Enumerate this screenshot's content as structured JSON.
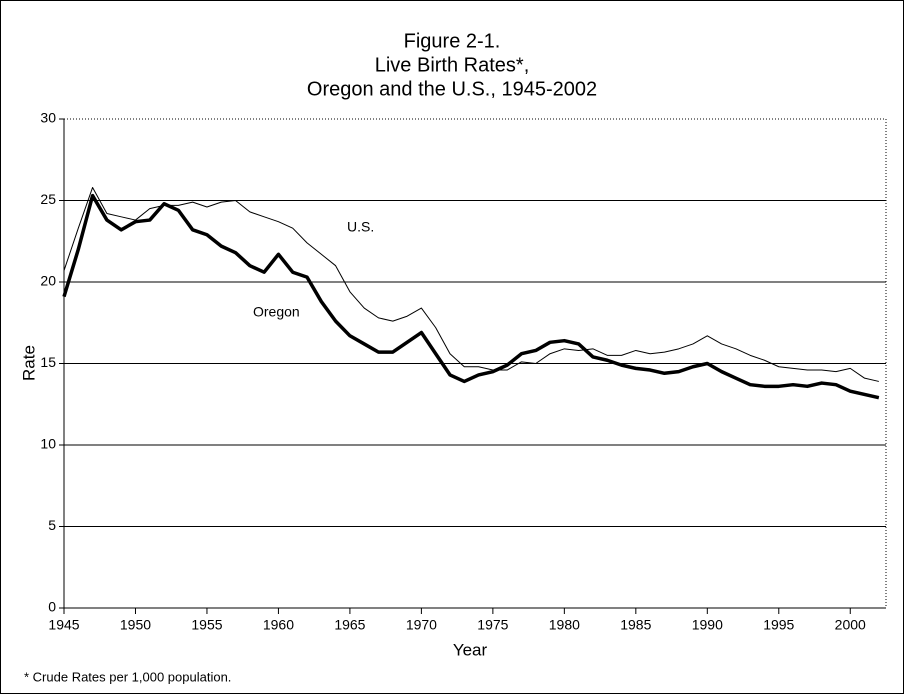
{
  "chart_data": {
    "type": "line",
    "title": [
      "Figure 2-1.",
      "Live Birth Rates*,",
      "Oregon and the U.S., 1945-2002"
    ],
    "x_label": "Year",
    "y_label": "Rate",
    "footnote": "* Crude Rates per 1,000 population.",
    "annotations": [
      "U.S.",
      "Oregon"
    ],
    "x": [
      1945,
      1946,
      1947,
      1948,
      1949,
      1950,
      1951,
      1952,
      1953,
      1954,
      1955,
      1956,
      1957,
      1958,
      1959,
      1960,
      1961,
      1962,
      1963,
      1964,
      1965,
      1966,
      1967,
      1968,
      1969,
      1970,
      1971,
      1972,
      1973,
      1974,
      1975,
      1976,
      1977,
      1978,
      1979,
      1980,
      1981,
      1982,
      1983,
      1984,
      1985,
      1986,
      1987,
      1988,
      1989,
      1990,
      1991,
      1992,
      1993,
      1994,
      1995,
      1996,
      1997,
      1998,
      1999,
      2000,
      2001,
      2002
    ],
    "series": [
      {
        "name": "U.S.",
        "color": "#000000",
        "line_width": 1,
        "values": [
          20.7,
          23.3,
          25.8,
          24.2,
          24.0,
          23.8,
          24.5,
          24.7,
          24.7,
          24.9,
          24.6,
          24.9,
          25.0,
          24.3,
          24.0,
          23.7,
          23.3,
          22.4,
          21.7,
          21.0,
          19.4,
          18.4,
          17.8,
          17.6,
          17.9,
          18.4,
          17.2,
          15.6,
          14.8,
          14.8,
          14.6,
          14.6,
          15.1,
          15.0,
          15.6,
          15.9,
          15.8,
          15.9,
          15.5,
          15.5,
          15.8,
          15.6,
          15.7,
          15.9,
          16.2,
          16.7,
          16.2,
          15.9,
          15.5,
          15.2,
          14.8,
          14.7,
          14.6,
          14.6,
          14.5,
          14.7,
          14.1,
          13.9
        ]
      },
      {
        "name": "Oregon",
        "color": "#000000",
        "line_width": 3.5,
        "values": [
          19.1,
          22.0,
          25.3,
          23.8,
          23.2,
          23.7,
          23.8,
          24.8,
          24.4,
          23.2,
          22.9,
          22.2,
          21.8,
          21.0,
          20.6,
          21.7,
          20.6,
          20.3,
          18.8,
          17.6,
          16.7,
          16.2,
          15.7,
          15.7,
          16.3,
          16.9,
          15.6,
          14.3,
          13.9,
          14.3,
          14.5,
          14.9,
          15.6,
          15.8,
          16.3,
          16.4,
          16.2,
          15.4,
          15.2,
          14.9,
          14.7,
          14.6,
          14.4,
          14.5,
          14.8,
          15.0,
          14.5,
          14.1,
          13.7,
          13.6,
          13.6,
          13.7,
          13.6,
          13.8,
          13.7,
          13.3,
          13.1,
          12.9
        ]
      }
    ],
    "xlim": [
      1945,
      2002.5
    ],
    "xticks": [
      1945,
      1950,
      1955,
      1960,
      1965,
      1970,
      1975,
      1980,
      1985,
      1990,
      1995,
      2000
    ],
    "ylim": [
      0,
      30
    ],
    "yticks": [
      0,
      5,
      10,
      15,
      20,
      25,
      30
    ],
    "grid": true
  }
}
